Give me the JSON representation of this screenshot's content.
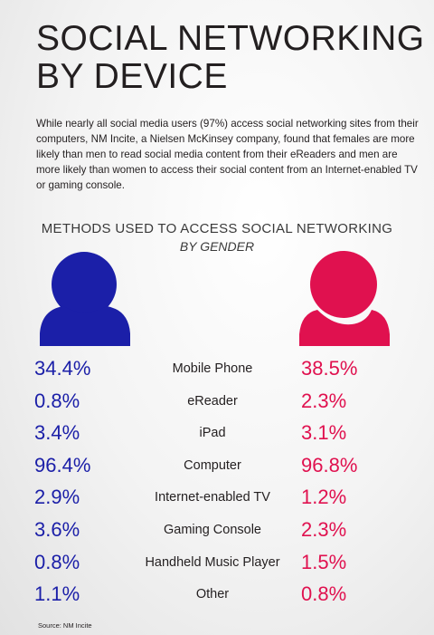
{
  "header": {
    "title_line1": "SOCIAL NETWORKING",
    "title_line2": "BY DEVICE",
    "intro": "While nearly all social media users (97%) access social networking sites from their computers, NM Incite, a Nielsen McKinsey company, found that females are more likely than men to read social media content from their eReaders and men are more likely than women to access their social content from an Internet-enabled TV or gaming console."
  },
  "chart_data": {
    "type": "table",
    "title": "METHODS USED TO ACCESS SOCIAL NETWORKING",
    "subtitle": "BY GENDER",
    "categories": [
      "Mobile Phone",
      "eReader",
      "iPad",
      "Computer",
      "Internet-enabled TV",
      "Gaming Console",
      "Handheld Music Player",
      "Other"
    ],
    "series": [
      {
        "values": [
          34.4,
          0.8,
          3.4,
          96.4,
          2.9,
          3.6,
          0.8,
          1.1
        ],
        "labels": [
          "34.4%",
          "0.8%",
          "3.4%",
          "96.4%",
          "2.9%",
          "3.6%",
          "0.8%",
          "1.1%"
        ],
        "color": "#1b1fa8"
      },
      {
        "values": [
          38.5,
          2.3,
          3.1,
          96.8,
          1.2,
          2.3,
          1.5,
          0.8
        ],
        "labels": [
          "38.5%",
          "2.3%",
          "3.1%",
          "96.8%",
          "1.2%",
          "2.3%",
          "1.5%",
          "0.8%"
        ],
        "color": "#e0114f"
      }
    ]
  },
  "icons": {
    "male": "male-person-icon",
    "female": "female-person-icon"
  },
  "colors": {
    "male": "#1b1fa8",
    "female": "#e0114f"
  },
  "footer": {
    "source": "Source: NM Incite"
  }
}
